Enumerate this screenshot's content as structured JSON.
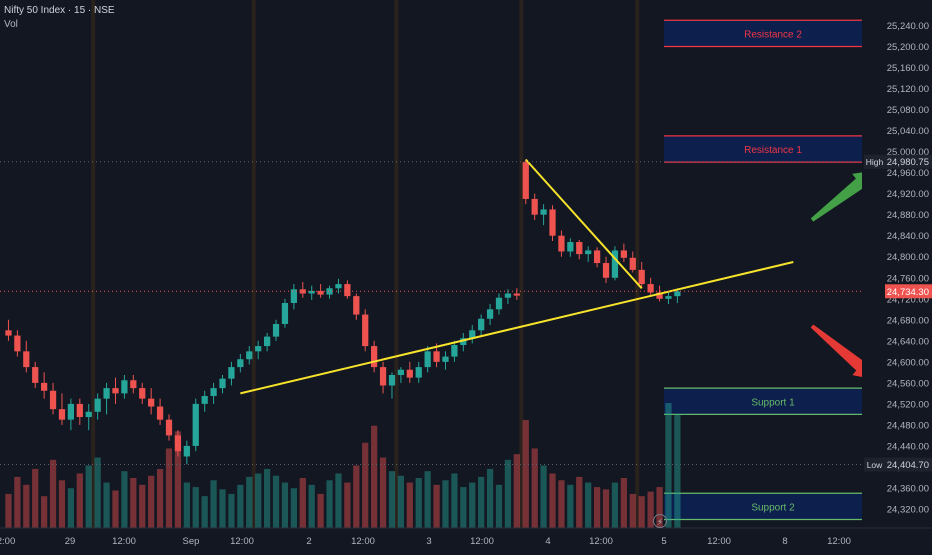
{
  "header": {
    "symbol": "Nifty 50 Index · 15 · NSE",
    "volume_label": "Vol"
  },
  "colors": {
    "background": "#131722",
    "up": "#26a69a",
    "down": "#ef5350",
    "resistance_text": "#f23645",
    "support_text": "#66bb6a",
    "zone_fill": "#0d1f4d",
    "trend": "#f7e32b",
    "arrow_up": "#43a047",
    "arrow_down": "#e53935"
  },
  "chart_data": {
    "type": "candlestick",
    "y_range": [
      24300,
      25250
    ],
    "y_ticks": [
      24320,
      24360,
      24400,
      24440,
      24480,
      24520,
      24560,
      24600,
      24640,
      24680,
      24720,
      24760,
      24800,
      24840,
      24880,
      24920,
      24960,
      25000,
      25040,
      25080,
      25120,
      25160,
      25200,
      25240
    ],
    "y_tick_labels": [
      "24,320.00",
      "24,360.00",
      "24,400.00",
      "24,440.00",
      "24,480.00",
      "24,520.00",
      "24,560.00",
      "24,600.00",
      "24,640.00",
      "24,680.00",
      "24,720.00",
      "24,760.00",
      "24,800.00",
      "24,840.00",
      "24,880.00",
      "24,920.00",
      "24,960.00",
      "25,000.00",
      "25,040.00",
      "25,080.00",
      "25,120.00",
      "25,160.00",
      "25,200.00",
      "25,240.00"
    ],
    "x_labels": [
      "2:00",
      "29",
      "12:00",
      "Sep",
      "12:00",
      "2",
      "12:00",
      "3",
      "12:00",
      "4",
      "12:00",
      "5",
      "12:00",
      "8",
      "12:00"
    ],
    "price_markers": [
      {
        "label": "High",
        "value": 24980.75,
        "text": "24,980.75",
        "kind": "high"
      },
      {
        "label": "",
        "value": 24734.3,
        "text": "24,734.30",
        "kind": "last"
      },
      {
        "label": "Low",
        "value": 24404.7,
        "text": "24,404.70",
        "kind": "low"
      }
    ],
    "zones": [
      {
        "label": "Resistance 2",
        "from": 25200,
        "to": 25250,
        "kind": "resistance"
      },
      {
        "label": "Resistance 1",
        "from": 24980,
        "to": 25030,
        "kind": "resistance"
      },
      {
        "label": "Support 1",
        "from": 24500,
        "to": 24550,
        "kind": "support"
      },
      {
        "label": "Support 2",
        "from": 24300,
        "to": 24350,
        "kind": "support"
      }
    ],
    "trendlines": [
      {
        "from": {
          "x": 26,
          "y": 24540
        },
        "to": {
          "x": 88,
          "y": 24790
        }
      },
      {
        "from": {
          "x": 58,
          "y": 24985
        },
        "to": {
          "x": 71,
          "y": 24740
        }
      }
    ],
    "session_starts": [
      10,
      28,
      44,
      58,
      71
    ],
    "candles": [
      {
        "o": 24660,
        "h": 24680,
        "l": 24640,
        "c": 24650
      },
      {
        "o": 24650,
        "h": 24660,
        "l": 24610,
        "c": 24620
      },
      {
        "o": 24620,
        "h": 24640,
        "l": 24580,
        "c": 24590
      },
      {
        "o": 24590,
        "h": 24600,
        "l": 24550,
        "c": 24560
      },
      {
        "o": 24560,
        "h": 24580,
        "l": 24530,
        "c": 24545
      },
      {
        "o": 24545,
        "h": 24560,
        "l": 24500,
        "c": 24510
      },
      {
        "o": 24510,
        "h": 24540,
        "l": 24480,
        "c": 24490
      },
      {
        "o": 24490,
        "h": 24530,
        "l": 24470,
        "c": 24520
      },
      {
        "o": 24520,
        "h": 24530,
        "l": 24480,
        "c": 24495
      },
      {
        "o": 24495,
        "h": 24520,
        "l": 24470,
        "c": 24505
      },
      {
        "o": 24505,
        "h": 24540,
        "l": 24490,
        "c": 24530
      },
      {
        "o": 24530,
        "h": 24560,
        "l": 24500,
        "c": 24550
      },
      {
        "o": 24550,
        "h": 24570,
        "l": 24520,
        "c": 24540
      },
      {
        "o": 24540,
        "h": 24575,
        "l": 24530,
        "c": 24565
      },
      {
        "o": 24565,
        "h": 24575,
        "l": 24540,
        "c": 24550
      },
      {
        "o": 24550,
        "h": 24560,
        "l": 24520,
        "c": 24530
      },
      {
        "o": 24530,
        "h": 24550,
        "l": 24500,
        "c": 24515
      },
      {
        "o": 24515,
        "h": 24530,
        "l": 24480,
        "c": 24490
      },
      {
        "o": 24490,
        "h": 24500,
        "l": 24450,
        "c": 24460
      },
      {
        "o": 24460,
        "h": 24470,
        "l": 24420,
        "c": 24430
      },
      {
        "o": 24420,
        "h": 24450,
        "l": 24405,
        "c": 24440
      },
      {
        "o": 24440,
        "h": 24530,
        "l": 24430,
        "c": 24520
      },
      {
        "o": 24520,
        "h": 24545,
        "l": 24505,
        "c": 24535
      },
      {
        "o": 24535,
        "h": 24560,
        "l": 24520,
        "c": 24550
      },
      {
        "o": 24550,
        "h": 24575,
        "l": 24540,
        "c": 24568
      },
      {
        "o": 24568,
        "h": 24600,
        "l": 24555,
        "c": 24590
      },
      {
        "o": 24590,
        "h": 24615,
        "l": 24580,
        "c": 24605
      },
      {
        "o": 24605,
        "h": 24630,
        "l": 24595,
        "c": 24620
      },
      {
        "o": 24620,
        "h": 24640,
        "l": 24605,
        "c": 24630
      },
      {
        "o": 24630,
        "h": 24655,
        "l": 24620,
        "c": 24648
      },
      {
        "o": 24648,
        "h": 24680,
        "l": 24640,
        "c": 24672
      },
      {
        "o": 24672,
        "h": 24720,
        "l": 24665,
        "c": 24712
      },
      {
        "o": 24712,
        "h": 24748,
        "l": 24700,
        "c": 24738
      },
      {
        "o": 24738,
        "h": 24752,
        "l": 24722,
        "c": 24730
      },
      {
        "o": 24730,
        "h": 24745,
        "l": 24718,
        "c": 24735
      },
      {
        "o": 24735,
        "h": 24748,
        "l": 24722,
        "c": 24728
      },
      {
        "o": 24728,
        "h": 24745,
        "l": 24720,
        "c": 24740
      },
      {
        "o": 24740,
        "h": 24758,
        "l": 24730,
        "c": 24748
      },
      {
        "o": 24748,
        "h": 24755,
        "l": 24720,
        "c": 24725
      },
      {
        "o": 24725,
        "h": 24730,
        "l": 24680,
        "c": 24690
      },
      {
        "o": 24690,
        "h": 24700,
        "l": 24620,
        "c": 24630
      },
      {
        "o": 24630,
        "h": 24640,
        "l": 24580,
        "c": 24590
      },
      {
        "o": 24590,
        "h": 24600,
        "l": 24540,
        "c": 24555
      },
      {
        "o": 24555,
        "h": 24580,
        "l": 24530,
        "c": 24575
      },
      {
        "o": 24575,
        "h": 24590,
        "l": 24560,
        "c": 24585
      },
      {
        "o": 24585,
        "h": 24600,
        "l": 24560,
        "c": 24570
      },
      {
        "o": 24570,
        "h": 24600,
        "l": 24560,
        "c": 24590
      },
      {
        "o": 24590,
        "h": 24630,
        "l": 24580,
        "c": 24620
      },
      {
        "o": 24620,
        "h": 24635,
        "l": 24590,
        "c": 24600
      },
      {
        "o": 24600,
        "h": 24620,
        "l": 24585,
        "c": 24610
      },
      {
        "o": 24610,
        "h": 24640,
        "l": 24600,
        "c": 24632
      },
      {
        "o": 24632,
        "h": 24655,
        "l": 24620,
        "c": 24645
      },
      {
        "o": 24645,
        "h": 24670,
        "l": 24635,
        "c": 24660
      },
      {
        "o": 24660,
        "h": 24690,
        "l": 24650,
        "c": 24682
      },
      {
        "o": 24682,
        "h": 24710,
        "l": 24670,
        "c": 24700
      },
      {
        "o": 24700,
        "h": 24730,
        "l": 24690,
        "c": 24722
      },
      {
        "o": 24722,
        "h": 24738,
        "l": 24710,
        "c": 24730
      },
      {
        "o": 24730,
        "h": 24740,
        "l": 24718,
        "c": 24726
      },
      {
        "o": 24980,
        "h": 24985,
        "l": 24900,
        "c": 24910
      },
      {
        "o": 24910,
        "h": 24920,
        "l": 24870,
        "c": 24880
      },
      {
        "o": 24880,
        "h": 24900,
        "l": 24860,
        "c": 24890
      },
      {
        "o": 24890,
        "h": 24898,
        "l": 24830,
        "c": 24840
      },
      {
        "o": 24840,
        "h": 24850,
        "l": 24800,
        "c": 24810
      },
      {
        "o": 24810,
        "h": 24835,
        "l": 24800,
        "c": 24828
      },
      {
        "o": 24828,
        "h": 24832,
        "l": 24795,
        "c": 24805
      },
      {
        "o": 24805,
        "h": 24820,
        "l": 24790,
        "c": 24812
      },
      {
        "o": 24812,
        "h": 24818,
        "l": 24780,
        "c": 24788
      },
      {
        "o": 24788,
        "h": 24800,
        "l": 24750,
        "c": 24760
      },
      {
        "o": 24760,
        "h": 24820,
        "l": 24755,
        "c": 24812
      },
      {
        "o": 24812,
        "h": 24825,
        "l": 24790,
        "c": 24798
      },
      {
        "o": 24798,
        "h": 24810,
        "l": 24770,
        "c": 24775
      },
      {
        "o": 24775,
        "h": 24790,
        "l": 24740,
        "c": 24748
      },
      {
        "o": 24748,
        "h": 24760,
        "l": 24725,
        "c": 24732
      },
      {
        "o": 24732,
        "h": 24745,
        "l": 24715,
        "c": 24720
      },
      {
        "o": 24720,
        "h": 24735,
        "l": 24710,
        "c": 24725
      },
      {
        "o": 24725,
        "h": 24740,
        "l": 24712,
        "c": 24734
      }
    ],
    "volumes": [
      30,
      45,
      38,
      52,
      28,
      60,
      42,
      35,
      48,
      55,
      62,
      40,
      33,
      50,
      44,
      38,
      46,
      52,
      70,
      85,
      40,
      36,
      28,
      42,
      34,
      30,
      38,
      45,
      48,
      52,
      46,
      40,
      35,
      44,
      38,
      30,
      42,
      48,
      40,
      55,
      75,
      90,
      62,
      50,
      46,
      40,
      44,
      50,
      38,
      42,
      48,
      36,
      40,
      45,
      52,
      38,
      60,
      65,
      95,
      70,
      55,
      48,
      42,
      38,
      45,
      40,
      36,
      34,
      40,
      44,
      30,
      28,
      32,
      36,
      110,
      100
    ]
  }
}
